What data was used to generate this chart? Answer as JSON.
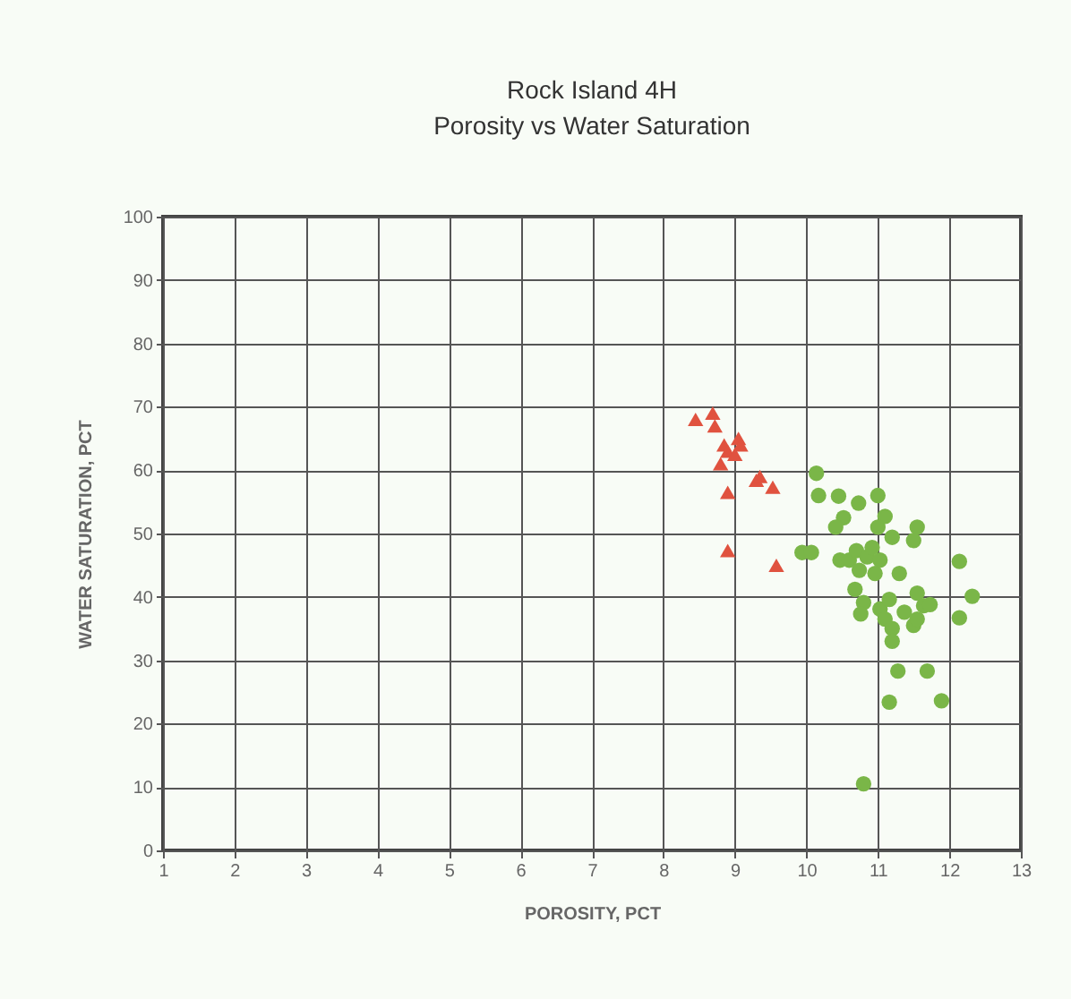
{
  "chart_data": {
    "type": "scatter",
    "title": "Rock Island 4H",
    "subtitle": "Porosity  vs  Water Saturation",
    "xlabel": "POROSITY,  PCT",
    "ylabel": "WATER SATURATION,  PCT",
    "xlim": [
      1,
      13
    ],
    "xticks": [
      1,
      2,
      3,
      4,
      5,
      6,
      7,
      8,
      9,
      10,
      11,
      12,
      13
    ],
    "ylim": [
      0,
      100
    ],
    "yticks": [
      0,
      10,
      20,
      30,
      40,
      50,
      60,
      70,
      80,
      90,
      100
    ],
    "grid": true,
    "series": [
      {
        "color": "#e0523f",
        "marker": "triangle",
        "x": [
          8.45,
          8.69,
          8.72,
          8.85,
          8.8,
          8.9,
          9.05,
          9.08,
          9.0,
          8.9,
          9.3,
          9.35,
          9.53,
          8.9,
          9.58
        ],
        "values": [
          68,
          69,
          67,
          64,
          61,
          63,
          65,
          64,
          62.5,
          56.5,
          58.4,
          59,
          57.3,
          47.3,
          45
        ]
      },
      {
        "color": "#7ab648",
        "marker": "circle",
        "x": [
          10.14,
          10.17,
          10.45,
          10.73,
          11.0,
          10.52,
          10.41,
          9.94,
          10.07,
          11.1,
          11.0,
          11.2,
          11.55,
          11.5,
          10.47,
          10.6,
          10.7,
          10.85,
          10.92,
          11.03,
          10.96,
          10.74,
          11.3,
          12.14,
          10.68,
          10.8,
          10.76,
          11.03,
          11.16,
          11.1,
          11.2,
          11.2,
          11.37,
          11.55,
          11.64,
          11.5,
          11.55,
          11.73,
          12.14,
          12.32,
          11.28,
          11.69,
          11.16,
          11.89,
          10.8
        ],
        "values": [
          59.5,
          56,
          55.9,
          54.8,
          56,
          52.5,
          51,
          47,
          47,
          52.7,
          51,
          49.4,
          51,
          48.9,
          45.8,
          45.8,
          47.3,
          46.3,
          47.8,
          45.8,
          43.7,
          44.2,
          43.7,
          45.6,
          41.2,
          39.1,
          37.3,
          38.1,
          39.6,
          36.5,
          35,
          33,
          37.6,
          40.6,
          38.6,
          35.5,
          36.5,
          38.8,
          36.7,
          40.1,
          28.3,
          28.3,
          23.4,
          23.6,
          10.5
        ]
      }
    ]
  }
}
